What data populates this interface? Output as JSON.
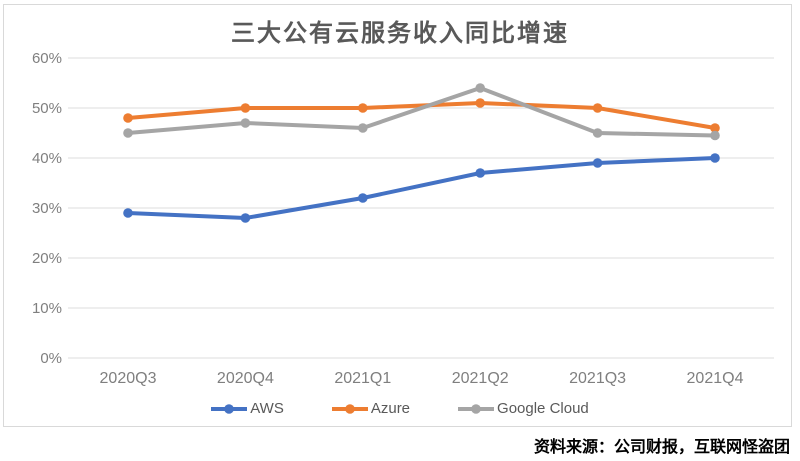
{
  "chart": {
    "title": "三大公有云服务收入同比增速"
  },
  "source_note": "资料来源：公司财报，互联网怪盗团",
  "chart_data": {
    "type": "line",
    "title": "三大公有云服务收入同比增速",
    "categories": [
      "2020Q3",
      "2020Q4",
      "2021Q1",
      "2021Q2",
      "2021Q3",
      "2021Q4"
    ],
    "series": [
      {
        "name": "AWS",
        "color": "#4472C4",
        "values": [
          29,
          28,
          32,
          37,
          39,
          40
        ]
      },
      {
        "name": "Azure",
        "color": "#ED7D31",
        "values": [
          48,
          50,
          50,
          51,
          50,
          46
        ]
      },
      {
        "name": "Google Cloud",
        "color": "#A5A5A5",
        "values": [
          45,
          47,
          46,
          54,
          45,
          44.5
        ]
      }
    ],
    "xlabel": "",
    "ylabel": "",
    "ylim": [
      0,
      60
    ],
    "ytick_step": 10,
    "ytick_labels": [
      "0%",
      "10%",
      "20%",
      "30%",
      "40%",
      "50%",
      "60%"
    ],
    "grid": true,
    "legend_position": "bottom",
    "marker": "circle",
    "title_color": "#595959",
    "axis_label_color": "#7F7F7F",
    "gridline_color": "#DCDCDC",
    "frame_border_color": "#D9D9D9"
  }
}
